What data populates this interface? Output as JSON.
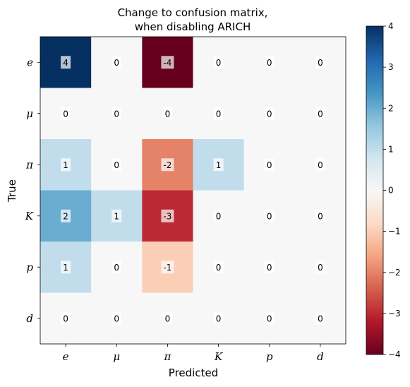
{
  "chart_data": {
    "type": "heatmap",
    "title": [
      "Change to confusion matrix,",
      "when disabling ARICH"
    ],
    "xlabel": "Predicted",
    "ylabel": "True",
    "x_categories": [
      "e",
      "μ",
      "π",
      "K",
      "p",
      "d"
    ],
    "y_categories": [
      "e",
      "μ",
      "π",
      "K",
      "p",
      "d"
    ],
    "values": [
      [
        4,
        0,
        -4,
        0,
        0,
        0
      ],
      [
        0,
        0,
        0,
        0,
        0,
        0
      ],
      [
        1,
        0,
        -2,
        1,
        0,
        0
      ],
      [
        2,
        1,
        -3,
        0,
        0,
        0
      ],
      [
        1,
        0,
        -1,
        0,
        0,
        0
      ],
      [
        0,
        0,
        0,
        0,
        0,
        0
      ]
    ],
    "colorbar": {
      "colormap": "RdBu",
      "vmin": -4,
      "vmax": 4,
      "ticks": [
        4,
        3,
        2,
        1,
        0,
        -1,
        -2,
        -3,
        -4
      ],
      "tick_labels": [
        "4",
        "3",
        "2",
        "1",
        "0",
        "−1",
        "−2",
        "−3",
        "−4"
      ]
    }
  }
}
